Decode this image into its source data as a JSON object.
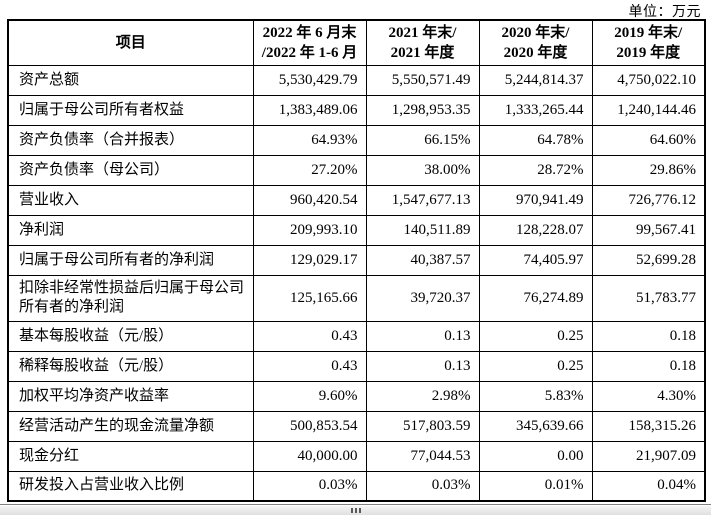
{
  "unit_label": "单位：万元",
  "table": {
    "columns": [
      {
        "line1": "项目",
        "line2": ""
      },
      {
        "line1": "2022 年 6 月末",
        "line2": "/2022 年 1-6 月"
      },
      {
        "line1": "2021 年末/",
        "line2": "2021 年度"
      },
      {
        "line1": "2020 年末/",
        "line2": "2020 年度"
      },
      {
        "line1": "2019 年末/",
        "line2": "2019 年度"
      }
    ],
    "rows": [
      {
        "label": "资产总额",
        "values": [
          "5,530,429.79",
          "5,550,571.49",
          "5,244,814.37",
          "4,750,022.10"
        ],
        "tall": false
      },
      {
        "label": "归属于母公司所有者权益",
        "values": [
          "1,383,489.06",
          "1,298,953.35",
          "1,333,265.44",
          "1,240,144.46"
        ],
        "tall": false
      },
      {
        "label": "资产负债率（合并报表）",
        "values": [
          "64.93%",
          "66.15%",
          "64.78%",
          "64.60%"
        ],
        "tall": false
      },
      {
        "label": "资产负债率（母公司）",
        "values": [
          "27.20%",
          "38.00%",
          "28.72%",
          "29.86%"
        ],
        "tall": false
      },
      {
        "label": "营业收入",
        "values": [
          "960,420.54",
          "1,547,677.13",
          "970,941.49",
          "726,776.12"
        ],
        "tall": false
      },
      {
        "label": "净利润",
        "values": [
          "209,993.10",
          "140,511.89",
          "128,228.07",
          "99,567.41"
        ],
        "tall": false
      },
      {
        "label": "归属于母公司所有者的净利润",
        "values": [
          "129,029.17",
          "40,387.57",
          "74,405.97",
          "52,699.28"
        ],
        "tall": false
      },
      {
        "label": "扣除非经常性损益后归属于母公司所有者的净利润",
        "values": [
          "125,165.66",
          "39,720.37",
          "76,274.89",
          "51,783.77"
        ],
        "tall": true
      },
      {
        "label": "基本每股收益（元/股）",
        "values": [
          "0.43",
          "0.13",
          "0.25",
          "0.18"
        ],
        "tall": false
      },
      {
        "label": "稀释每股收益（元/股）",
        "values": [
          "0.43",
          "0.13",
          "0.25",
          "0.18"
        ],
        "tall": false
      },
      {
        "label": "加权平均净资产收益率",
        "values": [
          "9.60%",
          "2.98%",
          "5.83%",
          "4.30%"
        ],
        "tall": false
      },
      {
        "label": "经营活动产生的现金流量净额",
        "values": [
          "500,853.54",
          "517,803.59",
          "345,639.66",
          "158,315.26"
        ],
        "tall": false
      },
      {
        "label": "现金分红",
        "values": [
          "40,000.00",
          "77,044.53",
          "0.00",
          "21,907.09"
        ],
        "tall": false
      },
      {
        "label": "研发投入占营业收入比例",
        "values": [
          "0.03%",
          "0.03%",
          "0.01%",
          "0.04%"
        ],
        "tall": false
      }
    ]
  }
}
